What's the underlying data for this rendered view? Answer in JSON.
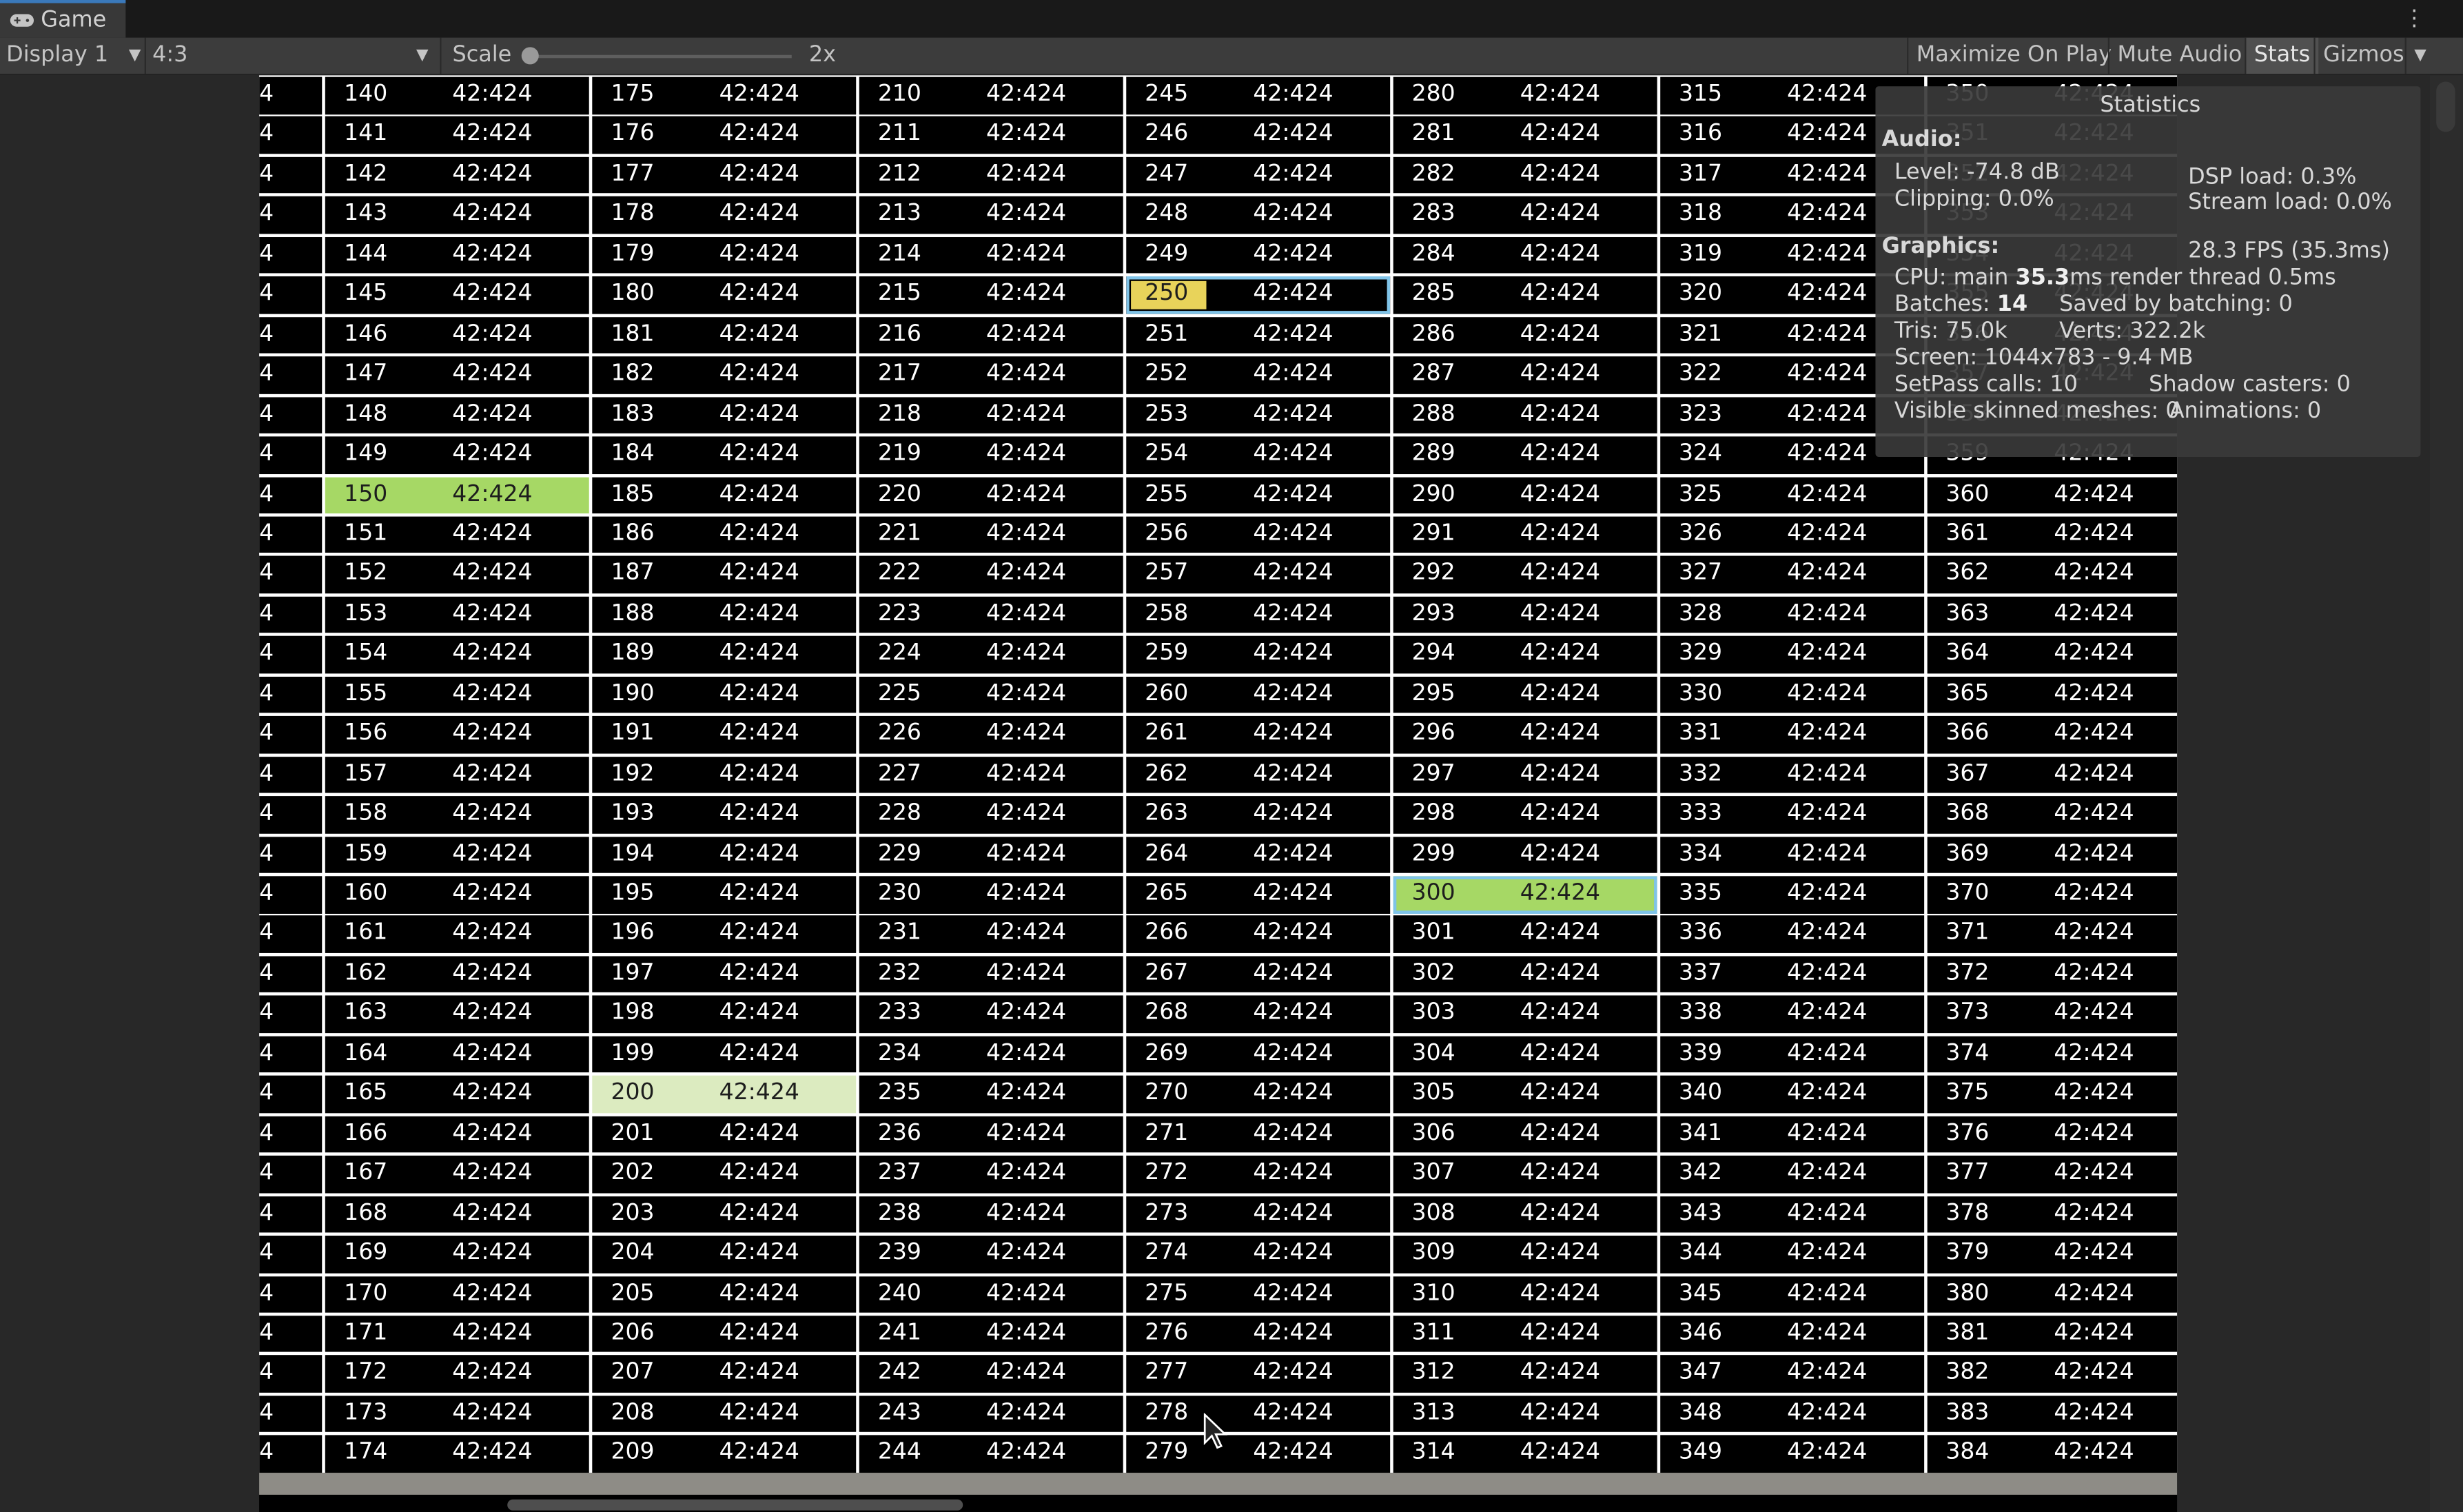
{
  "tab": {
    "title": "Game",
    "icon": "gamepad-icon"
  },
  "toolbar": {
    "display": "Display 1",
    "aspect": "4:3",
    "scale_label": "Scale",
    "scale_value": "2x",
    "maximize": "Maximize On Play",
    "mute": "Mute Audio",
    "stats": "Stats",
    "gizmos": "Gizmos"
  },
  "table": {
    "cell_value": "42:424",
    "partial_marker": "4",
    "columns": [
      {
        "start": 140
      },
      {
        "start": 175
      },
      {
        "start": 210
      },
      {
        "start": 245
      },
      {
        "start": 280
      },
      {
        "start": 315
      },
      {
        "start": 350
      }
    ],
    "rows": 35,
    "highlights": {
      "150": "#a6d865",
      "200": "#dcebc0",
      "250": "#e8d35a",
      "300": "#a6d865"
    },
    "boxed": [
      "250",
      "300"
    ]
  },
  "stats": {
    "title": "Statistics",
    "audio_header": "Audio:",
    "level": "Level: -74.8 dB",
    "clipping": "Clipping: 0.0%",
    "dsp": "DSP load: 0.3%",
    "stream": "Stream load: 0.0%",
    "graphics_header": "Graphics:",
    "fps": "28.3 FPS (35.3ms)",
    "cpu_prefix": "CPU: main ",
    "cpu_main": "35.3",
    "cpu_suffix": "ms  render thread 0.5ms",
    "batches_prefix": "Batches: ",
    "batches": "14",
    "saved": "Saved by batching: 0",
    "tris": "Tris: 75.0k",
    "verts": "Verts: 322.2k",
    "screen": "Screen: 1044x783 - 9.4 MB",
    "setpass": "SetPass calls: 10",
    "shadow": "Shadow casters: 0",
    "skinned": "Visible skinned meshes: 0",
    "animations": "Animations: 0"
  }
}
